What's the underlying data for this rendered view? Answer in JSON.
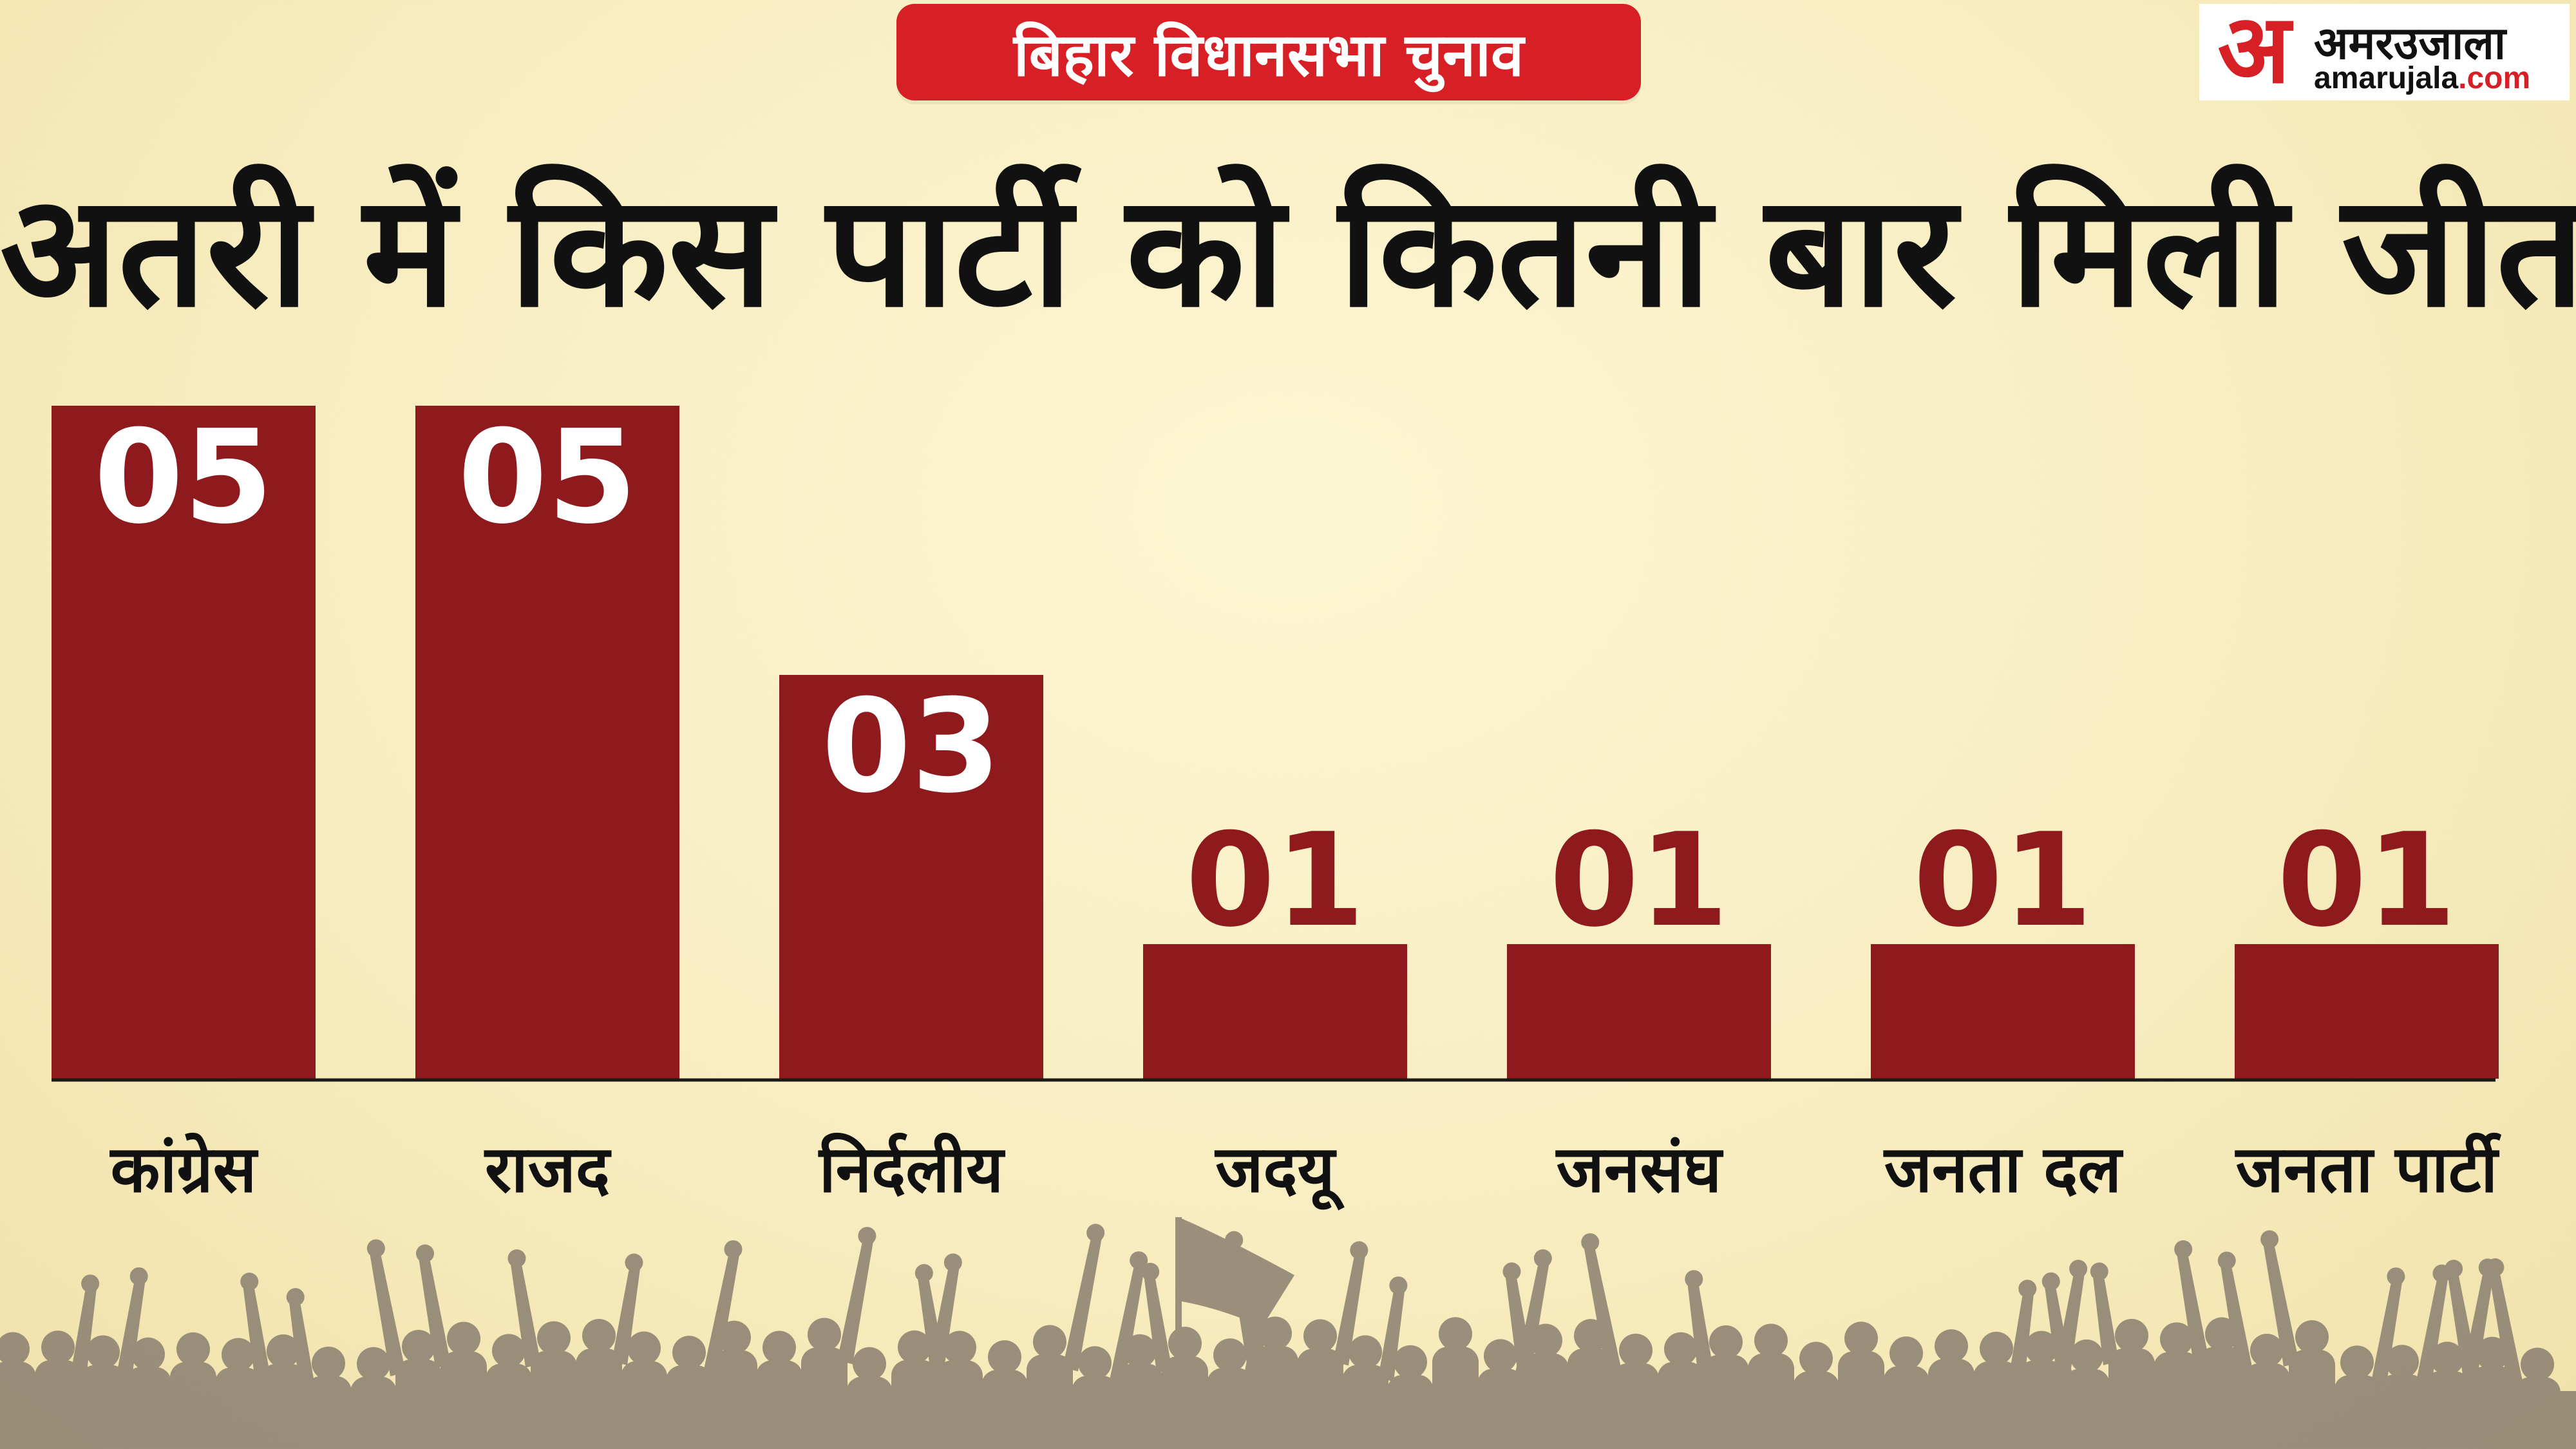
{
  "header": {
    "badge": "बिहार विधानसभा चुनाव",
    "logo": {
      "glyph": "अ",
      "hindi": "अमरउजाला",
      "latin_name": "amarujala",
      "latin_domain": ".com"
    }
  },
  "colors": {
    "bar": "#8f1a1d",
    "badge": "#d71f26",
    "value_on_bar": "#ffffff",
    "value_above": "#8f1a1d"
  },
  "chart_data": {
    "type": "bar",
    "title": "अतरी में किस पार्टी को कितनी बार मिली जीत",
    "categories": [
      "कांग्रेस",
      "राजद",
      "निर्दलीय",
      "जदयू",
      "जनसंघ",
      "जनता दल",
      "जनता पार्टी"
    ],
    "values": [
      5,
      5,
      3,
      1,
      1,
      1,
      1
    ],
    "value_labels": [
      "05",
      "05",
      "03",
      "01",
      "01",
      "01",
      "01"
    ],
    "ylim": [
      0,
      5
    ],
    "grid": false,
    "legend": "none"
  }
}
